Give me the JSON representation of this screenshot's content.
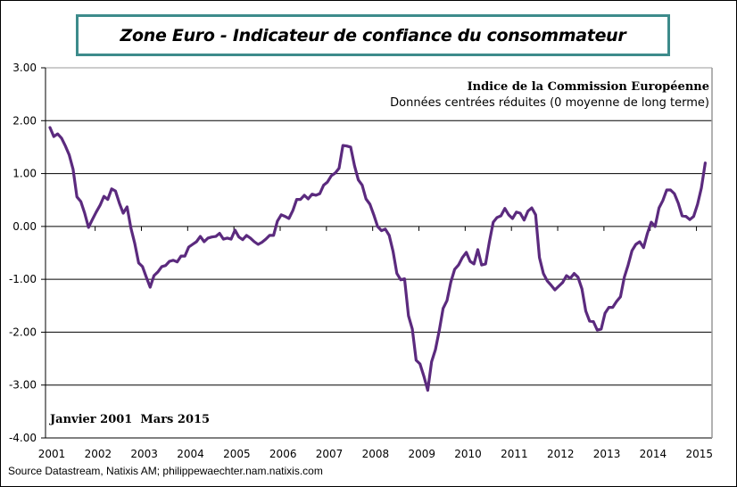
{
  "chart_data": {
    "type": "line",
    "title": "Zone Euro - Indicateur de confiance du consommateur",
    "subtitle_1": "Indice de la Commission Européenne",
    "subtitle_2": "Données centrées réduites (0 moyenne de long terme)",
    "period_label": "Janvier 2001  Mars 2015",
    "source": "Source Datastream, Natixis AM; philippewaechter.nam.natixis.com",
    "ylim": [
      -4,
      3
    ],
    "y_ticks": [
      "3.00",
      "2.00",
      "1.00",
      "0.00",
      "-1.00",
      "-2.00",
      "-3.00",
      "-4.00"
    ],
    "x_ticks": [
      "2001",
      "2002",
      "2003",
      "2004",
      "2005",
      "2006",
      "2007",
      "2008",
      "2009",
      "2010",
      "2011",
      "2012",
      "2013",
      "2014",
      "2015"
    ],
    "grid": "horizontal",
    "line_color": "#5b2a7e",
    "title_box_color": "#3d8b8b",
    "series": [
      {
        "start_month": "2001-01",
        "end_month": "2015-03",
        "frequency": "monthly",
        "values": [
          1.87,
          1.7,
          1.75,
          1.67,
          1.52,
          1.35,
          1.08,
          0.56,
          0.47,
          0.25,
          -0.02,
          0.13,
          0.27,
          0.4,
          0.57,
          0.51,
          0.71,
          0.67,
          0.44,
          0.25,
          0.37,
          -0.03,
          -0.32,
          -0.69,
          -0.76,
          -0.96,
          -1.15,
          -0.93,
          -0.86,
          -0.76,
          -0.74,
          -0.66,
          -0.64,
          -0.67,
          -0.56,
          -0.56,
          -0.39,
          -0.34,
          -0.29,
          -0.19,
          -0.29,
          -0.22,
          -0.2,
          -0.19,
          -0.13,
          -0.24,
          -0.22,
          -0.24,
          -0.07,
          -0.2,
          -0.25,
          -0.17,
          -0.22,
          -0.29,
          -0.34,
          -0.3,
          -0.24,
          -0.17,
          -0.17,
          0.1,
          0.22,
          0.19,
          0.15,
          0.3,
          0.51,
          0.51,
          0.59,
          0.52,
          0.61,
          0.59,
          0.62,
          0.78,
          0.84,
          0.96,
          1.01,
          1.1,
          1.53,
          1.52,
          1.5,
          1.15,
          0.88,
          0.78,
          0.52,
          0.42,
          0.22,
          0.0,
          -0.08,
          -0.05,
          -0.17,
          -0.47,
          -0.89,
          -1.01,
          -0.99,
          -1.69,
          -1.94,
          -2.53,
          -2.6,
          -2.83,
          -3.1,
          -2.56,
          -2.33,
          -1.97,
          -1.55,
          -1.4,
          -1.05,
          -0.81,
          -0.73,
          -0.59,
          -0.49,
          -0.66,
          -0.71,
          -0.44,
          -0.73,
          -0.71,
          -0.29,
          0.08,
          0.17,
          0.2,
          0.34,
          0.22,
          0.15,
          0.27,
          0.25,
          0.12,
          0.29,
          0.35,
          0.22,
          -0.59,
          -0.89,
          -1.03,
          -1.11,
          -1.2,
          -1.13,
          -1.06,
          -0.93,
          -0.98,
          -0.89,
          -0.96,
          -1.18,
          -1.6,
          -1.79,
          -1.8,
          -1.96,
          -1.94,
          -1.64,
          -1.53,
          -1.53,
          -1.42,
          -1.33,
          -0.96,
          -0.73,
          -0.46,
          -0.34,
          -0.29,
          -0.4,
          -0.13,
          0.08,
          0.0,
          0.35,
          0.49,
          0.69,
          0.69,
          0.62,
          0.44,
          0.2,
          0.19,
          0.13,
          0.19,
          0.42,
          0.73,
          1.2
        ]
      }
    ]
  }
}
